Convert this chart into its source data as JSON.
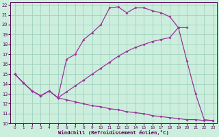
{
  "xlabel": "Windchill (Refroidissement éolien,°C)",
  "xlim": [
    -0.5,
    23.5
  ],
  "ylim": [
    10,
    22.3
  ],
  "xticks": [
    0,
    1,
    2,
    3,
    4,
    5,
    6,
    7,
    8,
    9,
    10,
    11,
    12,
    13,
    14,
    15,
    16,
    17,
    18,
    19,
    20,
    21,
    22,
    23
  ],
  "yticks": [
    10,
    11,
    12,
    13,
    14,
    15,
    16,
    17,
    18,
    19,
    20,
    21,
    22
  ],
  "bg_color": "#cceedd",
  "line_color": "#993399",
  "grid_color": "#99ccbb",
  "line1_x": [
    0,
    1,
    2,
    3,
    4,
    5,
    6,
    7,
    8,
    9,
    10,
    11,
    12,
    13,
    14,
    15,
    16,
    17,
    18,
    19,
    20
  ],
  "line1_y": [
    15.0,
    14.1,
    13.3,
    12.8,
    13.3,
    12.6,
    16.5,
    17.0,
    18.5,
    19.2,
    20.0,
    21.7,
    21.8,
    21.2,
    21.7,
    21.7,
    21.4,
    21.2,
    20.8,
    19.7,
    19.7
  ],
  "line2_x": [
    0,
    1,
    2,
    3,
    4,
    5,
    6,
    7,
    8,
    9,
    10,
    11,
    12,
    13,
    14,
    15,
    16,
    17,
    18,
    19,
    20,
    21,
    22,
    23
  ],
  "line2_y": [
    15.0,
    14.1,
    13.3,
    12.8,
    13.3,
    12.6,
    12.4,
    12.2,
    12.0,
    11.8,
    11.7,
    11.5,
    11.4,
    11.2,
    11.1,
    11.0,
    10.8,
    10.7,
    10.6,
    10.5,
    10.4,
    10.4,
    10.3,
    10.3
  ],
  "line3_x": [
    0,
    1,
    2,
    3,
    4,
    5,
    6,
    7,
    8,
    9,
    10,
    11,
    12,
    13,
    14,
    15,
    16,
    17,
    18,
    19,
    20,
    21,
    22,
    23
  ],
  "line3_y": [
    15.0,
    14.1,
    13.3,
    12.8,
    13.3,
    12.6,
    13.2,
    13.8,
    14.4,
    15.0,
    15.6,
    16.2,
    16.8,
    17.3,
    17.7,
    18.0,
    18.3,
    18.5,
    18.7,
    19.7,
    16.3,
    13.0,
    10.4,
    10.3
  ]
}
